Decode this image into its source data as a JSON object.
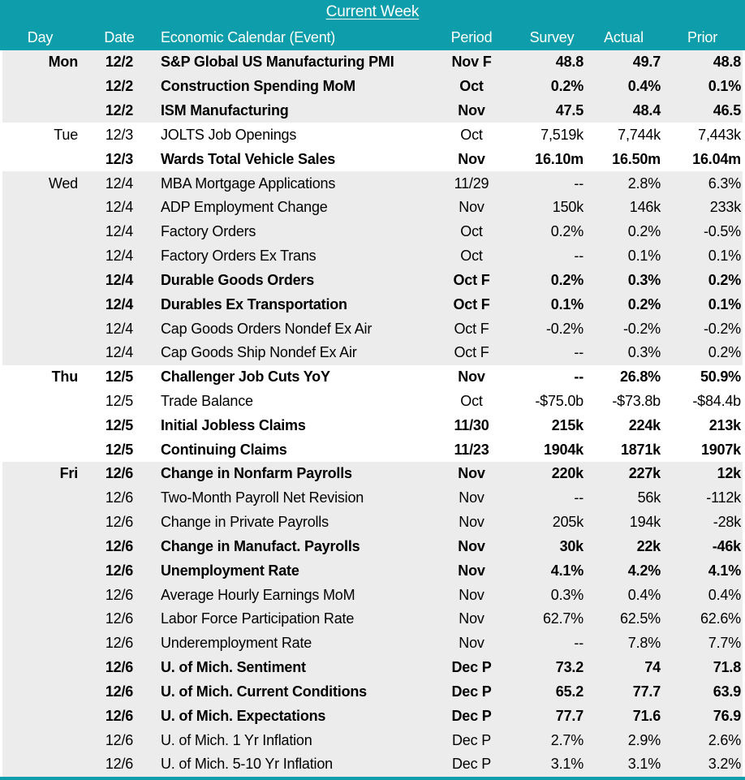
{
  "colors": {
    "accent_teal": "#0E9EAB",
    "stripe_gray": "#ECECEC",
    "header_text": "#FFFFFF",
    "body_text": "#000000"
  },
  "chart_data": {
    "type": "table",
    "title": "Current Week",
    "columns": [
      "Day",
      "Date",
      "Economic Calendar (Event)",
      "Period",
      "Survey",
      "Actual",
      "Prior"
    ],
    "rows": [
      {
        "day": "Mon",
        "date": "12/2",
        "event": "S&P Global US Manufacturing PMI",
        "period": "Nov F",
        "survey": "48.8",
        "actual": "49.7",
        "prior": "48.8",
        "bold": true,
        "shade": true
      },
      {
        "day": "",
        "date": "12/2",
        "event": "Construction Spending MoM",
        "period": "Oct",
        "survey": "0.2%",
        "actual": "0.4%",
        "prior": "0.1%",
        "bold": true,
        "shade": true
      },
      {
        "day": "",
        "date": "12/2",
        "event": "ISM Manufacturing",
        "period": "Nov",
        "survey": "47.5",
        "actual": "48.4",
        "prior": "46.5",
        "bold": true,
        "shade": true
      },
      {
        "day": "Tue",
        "date": "12/3",
        "event": "JOLTS Job Openings",
        "period": "Oct",
        "survey": "7,519k",
        "actual": "7,744k",
        "prior": "7,443k",
        "bold": false,
        "shade": false
      },
      {
        "day": "",
        "date": "12/3",
        "event": "Wards Total Vehicle Sales",
        "period": "Nov",
        "survey": "16.10m",
        "actual": "16.50m",
        "prior": "16.04m",
        "bold": true,
        "shade": false
      },
      {
        "day": "Wed",
        "date": "12/4",
        "event": "MBA Mortgage Applications",
        "period": "11/29",
        "survey": "--",
        "actual": "2.8%",
        "prior": "6.3%",
        "bold": false,
        "shade": true
      },
      {
        "day": "",
        "date": "12/4",
        "event": "ADP Employment Change",
        "period": "Nov",
        "survey": "150k",
        "actual": "146k",
        "prior": "233k",
        "bold": false,
        "shade": true
      },
      {
        "day": "",
        "date": "12/4",
        "event": "Factory Orders",
        "period": "Oct",
        "survey": "0.2%",
        "actual": "0.2%",
        "prior": "-0.5%",
        "bold": false,
        "shade": true
      },
      {
        "day": "",
        "date": "12/4",
        "event": "Factory Orders Ex Trans",
        "period": "Oct",
        "survey": "--",
        "actual": "0.1%",
        "prior": "0.1%",
        "bold": false,
        "shade": true
      },
      {
        "day": "",
        "date": "12/4",
        "event": "Durable Goods Orders",
        "period": "Oct F",
        "survey": "0.2%",
        "actual": "0.3%",
        "prior": "0.2%",
        "bold": true,
        "shade": true
      },
      {
        "day": "",
        "date": "12/4",
        "event": "Durables Ex Transportation",
        "period": "Oct F",
        "survey": "0.1%",
        "actual": "0.2%",
        "prior": "0.1%",
        "bold": true,
        "shade": true
      },
      {
        "day": "",
        "date": "12/4",
        "event": "Cap Goods Orders Nondef Ex Air",
        "period": "Oct F",
        "survey": "-0.2%",
        "actual": "-0.2%",
        "prior": "-0.2%",
        "bold": false,
        "shade": true
      },
      {
        "day": "",
        "date": "12/4",
        "event": "Cap Goods Ship Nondef Ex Air",
        "period": "Oct F",
        "survey": "--",
        "actual": "0.3%",
        "prior": "0.2%",
        "bold": false,
        "shade": true
      },
      {
        "day": "Thu",
        "date": "12/5",
        "event": "Challenger Job Cuts YoY",
        "period": "Nov",
        "survey": "--",
        "actual": "26.8%",
        "prior": "50.9%",
        "bold": true,
        "shade": false
      },
      {
        "day": "",
        "date": "12/5",
        "event": "Trade Balance",
        "period": "Oct",
        "survey": "-$75.0b",
        "actual": "-$73.8b",
        "prior": "-$84.4b",
        "bold": false,
        "shade": false
      },
      {
        "day": "",
        "date": "12/5",
        "event": "Initial Jobless Claims",
        "period": "11/30",
        "survey": "215k",
        "actual": "224k",
        "prior": "213k",
        "bold": true,
        "shade": false
      },
      {
        "day": "",
        "date": "12/5",
        "event": "Continuing Claims",
        "period": "11/23",
        "survey": "1904k",
        "actual": "1871k",
        "prior": "1907k",
        "bold": true,
        "shade": false
      },
      {
        "day": "Fri",
        "date": "12/6",
        "event": "Change in Nonfarm Payrolls",
        "period": "Nov",
        "survey": "220k",
        "actual": "227k",
        "prior": "12k",
        "bold": true,
        "shade": true
      },
      {
        "day": "",
        "date": "12/6",
        "event": "Two-Month Payroll Net Revision",
        "period": "Nov",
        "survey": "--",
        "actual": "56k",
        "prior": "-112k",
        "bold": false,
        "shade": true
      },
      {
        "day": "",
        "date": "12/6",
        "event": "Change in Private Payrolls",
        "period": "Nov",
        "survey": "205k",
        "actual": "194k",
        "prior": "-28k",
        "bold": false,
        "shade": true
      },
      {
        "day": "",
        "date": "12/6",
        "event": "Change in Manufact. Payrolls",
        "period": "Nov",
        "survey": "30k",
        "actual": "22k",
        "prior": "-46k",
        "bold": true,
        "shade": true
      },
      {
        "day": "",
        "date": "12/6",
        "event": "Unemployment Rate",
        "period": "Nov",
        "survey": "4.1%",
        "actual": "4.2%",
        "prior": "4.1%",
        "bold": true,
        "shade": true
      },
      {
        "day": "",
        "date": "12/6",
        "event": "Average Hourly Earnings MoM",
        "period": "Nov",
        "survey": "0.3%",
        "actual": "0.4%",
        "prior": "0.4%",
        "bold": false,
        "shade": true
      },
      {
        "day": "",
        "date": "12/6",
        "event": "Labor Force Participation Rate",
        "period": "Nov",
        "survey": "62.7%",
        "actual": "62.5%",
        "prior": "62.6%",
        "bold": false,
        "shade": true
      },
      {
        "day": "",
        "date": "12/6",
        "event": "Underemployment Rate",
        "period": "Nov",
        "survey": "--",
        "actual": "7.8%",
        "prior": "7.7%",
        "bold": false,
        "shade": true
      },
      {
        "day": "",
        "date": "12/6",
        "event": "U. of Mich. Sentiment",
        "period": "Dec P",
        "survey": "73.2",
        "actual": "74",
        "prior": "71.8",
        "bold": true,
        "shade": true
      },
      {
        "day": "",
        "date": "12/6",
        "event": "U. of Mich. Current Conditions",
        "period": "Dec P",
        "survey": "65.2",
        "actual": "77.7",
        "prior": "63.9",
        "bold": true,
        "shade": true
      },
      {
        "day": "",
        "date": "12/6",
        "event": "U. of Mich. Expectations",
        "period": "Dec P",
        "survey": "77.7",
        "actual": "71.6",
        "prior": "76.9",
        "bold": true,
        "shade": true
      },
      {
        "day": "",
        "date": "12/6",
        "event": "U. of Mich. 1 Yr Inflation",
        "period": "Dec P",
        "survey": "2.7%",
        "actual": "2.9%",
        "prior": "2.6%",
        "bold": false,
        "shade": true
      },
      {
        "day": "",
        "date": "12/6",
        "event": "U. of Mich. 5-10 Yr Inflation",
        "period": "Dec P",
        "survey": "3.1%",
        "actual": "3.1%",
        "prior": "3.2%",
        "bold": false,
        "shade": true
      }
    ]
  }
}
